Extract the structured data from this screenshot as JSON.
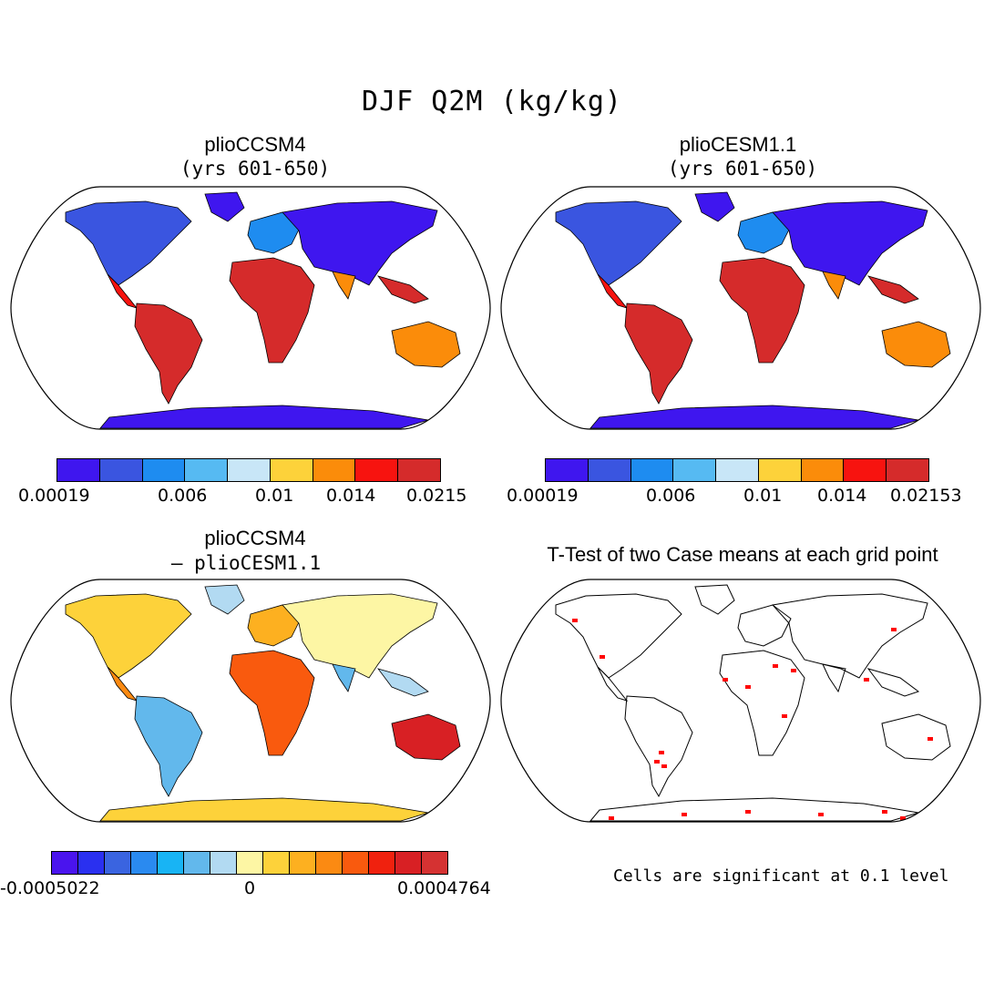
{
  "figure": {
    "title": "DJF Q2M (kg/kg)"
  },
  "panels": [
    {
      "title": "plioCCSM4",
      "subtitle": "(yrs 601-650)",
      "colorbar": {
        "colors": [
          "#3f16ef",
          "#3a55e0",
          "#1e8cf0",
          "#56baf2",
          "#c8e6f7",
          "#fdd23a",
          "#fb8c0a",
          "#f7130f",
          "#d52b2b"
        ],
        "tick_labels": [
          "0.00019",
          "0.006",
          "0.01",
          "0.014",
          "0.0215"
        ]
      }
    },
    {
      "title": "plioCESM1.1",
      "subtitle": "(yrs 601-650)",
      "colorbar": {
        "colors": [
          "#3f16ef",
          "#3a55e0",
          "#1e8cf0",
          "#56baf2",
          "#c8e6f7",
          "#fdd23a",
          "#fb8c0a",
          "#f7130f",
          "#d52b2b"
        ],
        "tick_labels": [
          "0.00019",
          "0.006",
          "0.01",
          "0.014",
          "0.02153"
        ]
      }
    },
    {
      "title": "plioCCSM4",
      "subtitle": "– plioCESM1.1",
      "colorbar": {
        "colors": [
          "#4a14ee",
          "#2a30f0",
          "#3a64e0",
          "#2a8af0",
          "#18b4f4",
          "#62b8ec",
          "#b2daf2",
          "#fdf6a4",
          "#fdd23a",
          "#fdb020",
          "#fb8a12",
          "#f95a0e",
          "#f0210e",
          "#d82024",
          "#d53232"
        ],
        "tick_labels": [
          "-0.0005022",
          "0",
          "0.0004764"
        ]
      }
    },
    {
      "title": "T-Test of two Case means at each grid point",
      "note": "Cells are significant at 0.1 level"
    }
  ]
}
